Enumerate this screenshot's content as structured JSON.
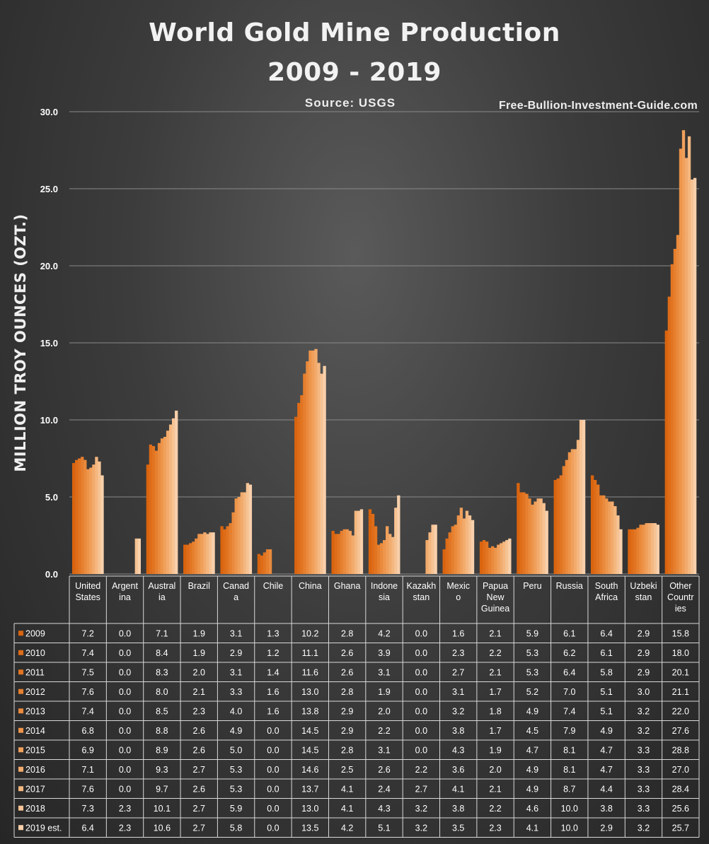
{
  "chart_data": {
    "type": "bar",
    "title": "World Gold Mine Production",
    "subtitle": "2009 - 2019",
    "source": "Source: USGS",
    "website": "Free-Bullion-Investment-Guide.com",
    "ylabel": "MILLION TROY OUNCES  (OZT.)",
    "ylim": [
      0,
      30
    ],
    "yticks": [
      "0.0",
      "5.0",
      "10.0",
      "15.0",
      "20.0",
      "25.0",
      "30.0"
    ],
    "grid": true,
    "legend": "table-below",
    "categories": [
      [
        "United",
        "States"
      ],
      [
        "Argent",
        "ina"
      ],
      [
        "Austral",
        "ia"
      ],
      [
        "Brazil"
      ],
      [
        "Canad",
        "a"
      ],
      [
        "Chile"
      ],
      [
        "China"
      ],
      [
        "Ghana"
      ],
      [
        "Indone",
        "sia"
      ],
      [
        "Kazakh",
        "stan"
      ],
      [
        "Mexic",
        "o"
      ],
      [
        "Papua",
        "New",
        "Guinea"
      ],
      [
        "Peru"
      ],
      [
        "Russia"
      ],
      [
        "South",
        "Africa"
      ],
      [
        "Uzbeki",
        "stan"
      ],
      [
        "Other",
        "Countr",
        "ies"
      ]
    ],
    "series": [
      {
        "name": "2009",
        "color": "#d9640f",
        "values": [
          "7.2",
          "0.0",
          "7.1",
          "1.9",
          "3.1",
          "1.3",
          "10.2",
          "2.8",
          "4.2",
          "0.0",
          "1.6",
          "2.1",
          "5.9",
          "6.1",
          "6.4",
          "2.9",
          "15.8"
        ]
      },
      {
        "name": "2010",
        "color": "#de6c18",
        "values": [
          "7.4",
          "0.0",
          "8.4",
          "1.9",
          "2.9",
          "1.2",
          "11.1",
          "2.6",
          "3.9",
          "0.0",
          "2.3",
          "2.2",
          "5.3",
          "6.2",
          "6.1",
          "2.9",
          "18.0"
        ]
      },
      {
        "name": "2011",
        "color": "#e27522",
        "values": [
          "7.5",
          "0.0",
          "8.3",
          "2.0",
          "3.1",
          "1.4",
          "11.6",
          "2.6",
          "3.1",
          "0.0",
          "2.7",
          "2.1",
          "5.3",
          "6.4",
          "5.8",
          "2.9",
          "20.1"
        ]
      },
      {
        "name": "2012",
        "color": "#e67f2e",
        "values": [
          "7.6",
          "0.0",
          "8.0",
          "2.1",
          "3.3",
          "1.6",
          "13.0",
          "2.8",
          "1.9",
          "0.0",
          "3.1",
          "1.7",
          "5.2",
          "7.0",
          "5.1",
          "3.0",
          "21.1"
        ]
      },
      {
        "name": "2013",
        "color": "#ea8a3c",
        "values": [
          "7.4",
          "0.0",
          "8.5",
          "2.3",
          "4.0",
          "1.6",
          "13.8",
          "2.9",
          "2.0",
          "0.0",
          "3.2",
          "1.8",
          "4.9",
          "7.4",
          "5.1",
          "3.2",
          "22.0"
        ]
      },
      {
        "name": "2014",
        "color": "#ed954b",
        "values": [
          "6.8",
          "0.0",
          "8.8",
          "2.6",
          "4.9",
          "0.0",
          "14.5",
          "2.9",
          "2.2",
          "0.0",
          "3.8",
          "1.7",
          "4.5",
          "7.9",
          "4.9",
          "3.2",
          "27.6"
        ]
      },
      {
        "name": "2015",
        "color": "#f0a05b",
        "values": [
          "6.9",
          "0.0",
          "8.9",
          "2.6",
          "5.0",
          "0.0",
          "14.5",
          "2.8",
          "3.1",
          "0.0",
          "4.3",
          "1.9",
          "4.7",
          "8.1",
          "4.7",
          "3.3",
          "28.8"
        ]
      },
      {
        "name": "2016",
        "color": "#f2ab6c",
        "values": [
          "7.1",
          "0.0",
          "9.3",
          "2.7",
          "5.3",
          "0.0",
          "14.6",
          "2.5",
          "2.6",
          "2.2",
          "3.6",
          "2.0",
          "4.9",
          "8.1",
          "4.7",
          "3.3",
          "27.0"
        ]
      },
      {
        "name": "2017",
        "color": "#f4b77f",
        "values": [
          "7.6",
          "0.0",
          "9.7",
          "2.6",
          "5.3",
          "0.0",
          "13.7",
          "4.1",
          "2.4",
          "2.7",
          "4.1",
          "2.1",
          "4.9",
          "8.7",
          "4.4",
          "3.3",
          "28.4"
        ]
      },
      {
        "name": "2018",
        "color": "#f6c394",
        "values": [
          "7.3",
          "2.3",
          "10.1",
          "2.7",
          "5.9",
          "0.0",
          "13.0",
          "4.1",
          "4.3",
          "3.2",
          "3.8",
          "2.2",
          "4.6",
          "10.0",
          "3.8",
          "3.3",
          "25.6"
        ]
      },
      {
        "name": "2019 est.",
        "color": "#f8d0ab",
        "values": [
          "6.4",
          "2.3",
          "10.6",
          "2.7",
          "5.8",
          "0.0",
          "13.5",
          "4.2",
          "5.1",
          "3.2",
          "3.5",
          "2.3",
          "4.1",
          "10.0",
          "2.9",
          "3.2",
          "25.7"
        ]
      }
    ]
  }
}
